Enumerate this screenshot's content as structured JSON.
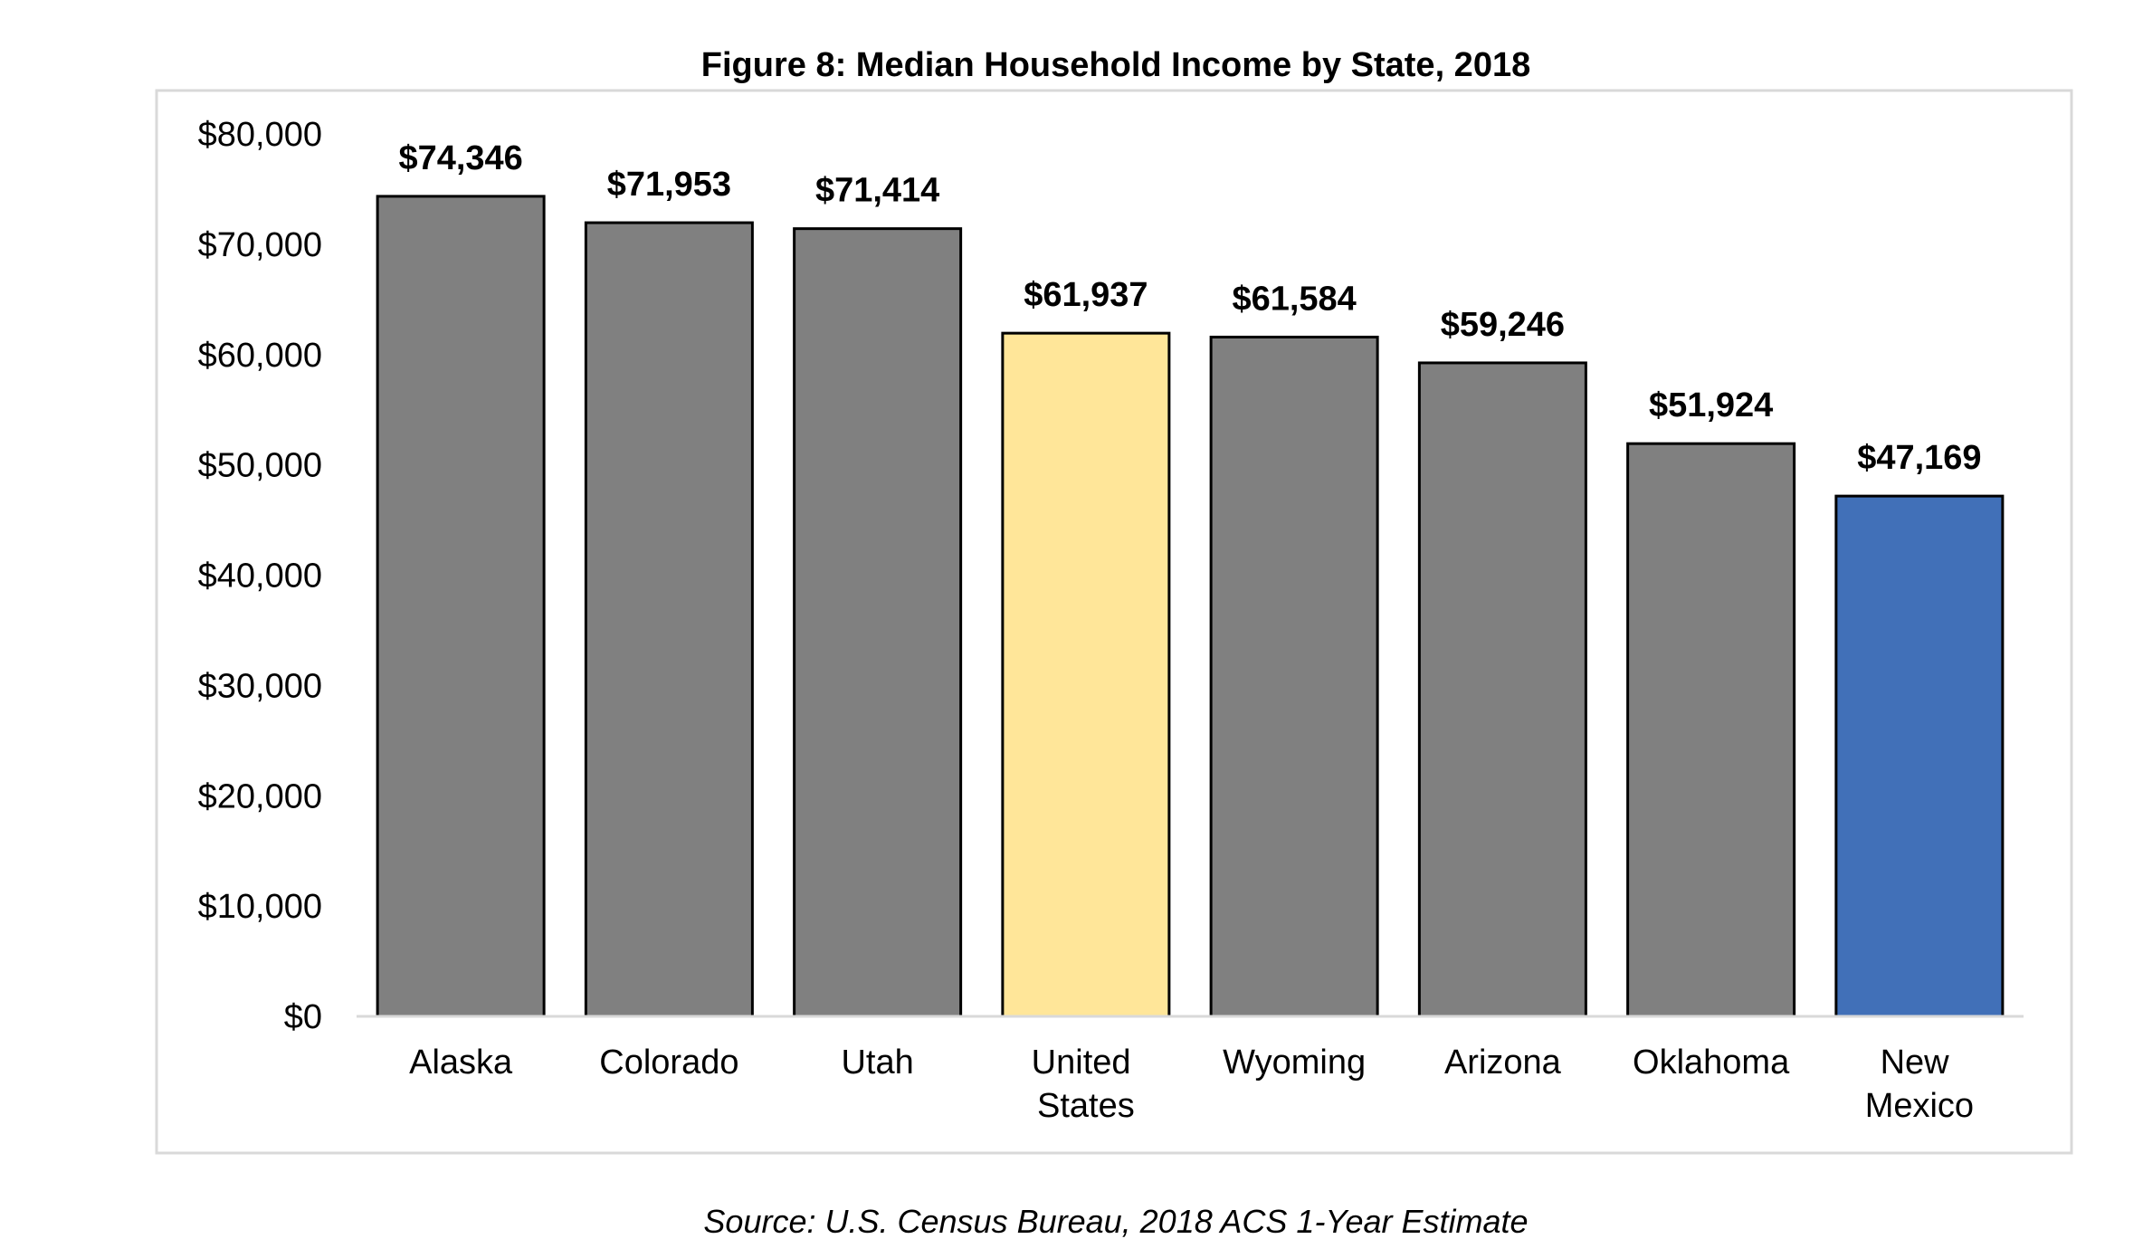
{
  "chart_data": {
    "type": "bar",
    "title": "Figure 8: Median Household Income by State, 2018",
    "categories": [
      "Alaska",
      "Colorado",
      "Utah",
      "United States",
      "Wyoming",
      "Arizona",
      "Oklahoma",
      "New Mexico"
    ],
    "values": [
      74346,
      71953,
      71414,
      61937,
      61584,
      59246,
      51924,
      47169
    ],
    "value_labels": [
      "$74,346",
      "$71,953",
      "$71,414",
      "$61,937",
      "$61,584",
      "$59,246",
      "$51,924",
      "$47,169"
    ],
    "colors": [
      "#808080",
      "#808080",
      "#808080",
      "#ffe699",
      "#808080",
      "#808080",
      "#808080",
      "#4170b8"
    ],
    "ylim": [
      0,
      80000
    ],
    "yticks": [
      {
        "value": 0,
        "label": "$0"
      },
      {
        "value": 10000,
        "label": "$10,000"
      },
      {
        "value": 20000,
        "label": "$20,000"
      },
      {
        "value": 30000,
        "label": "$30,000"
      },
      {
        "value": 40000,
        "label": "$40,000"
      },
      {
        "value": 50000,
        "label": "$50,000"
      },
      {
        "value": 60000,
        "label": "$60,000"
      },
      {
        "value": 70000,
        "label": "$70,000"
      },
      {
        "value": 80000,
        "label": "$80,000"
      }
    ],
    "grid": false,
    "source": "Source: U.S. Census Bureau, 2018 ACS 1-Year Estimate"
  }
}
